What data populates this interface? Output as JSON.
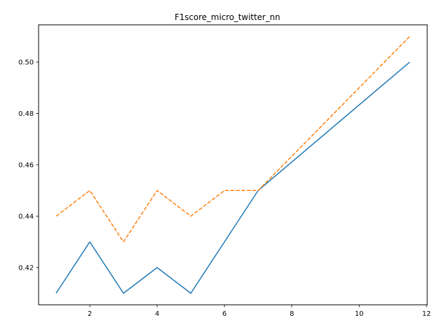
{
  "chart_data": {
    "type": "line",
    "title": "F1score_micro_twitter_nn",
    "xlabel": "",
    "ylabel": "",
    "xlim": [
      0.48,
      12.02
    ],
    "ylim": [
      0.4055,
      0.5145
    ],
    "xticks": [
      2,
      4,
      6,
      8,
      10,
      12
    ],
    "yticks": [
      0.42,
      0.44,
      0.46,
      0.48,
      0.5
    ],
    "xtick_labels": [
      "2",
      "4",
      "6",
      "8",
      "10",
      "12"
    ],
    "ytick_labels": [
      "0.42",
      "0.44",
      "0.46",
      "0.48",
      "0.50"
    ],
    "grid": false,
    "legend": null,
    "series": [
      {
        "color": "#1f77b4",
        "dash": "solid",
        "x": [
          1,
          2,
          3,
          4,
          5,
          6,
          7,
          11.5
        ],
        "y": [
          0.41,
          0.43,
          0.41,
          0.42,
          0.41,
          0.43,
          0.45,
          0.5
        ]
      },
      {
        "color": "#ff7f0e",
        "dash": "dashed",
        "x": [
          1,
          2,
          3,
          4,
          5,
          6,
          7,
          11.5
        ],
        "y": [
          0.44,
          0.45,
          0.43,
          0.45,
          0.44,
          0.45,
          0.45,
          0.51
        ]
      }
    ]
  }
}
